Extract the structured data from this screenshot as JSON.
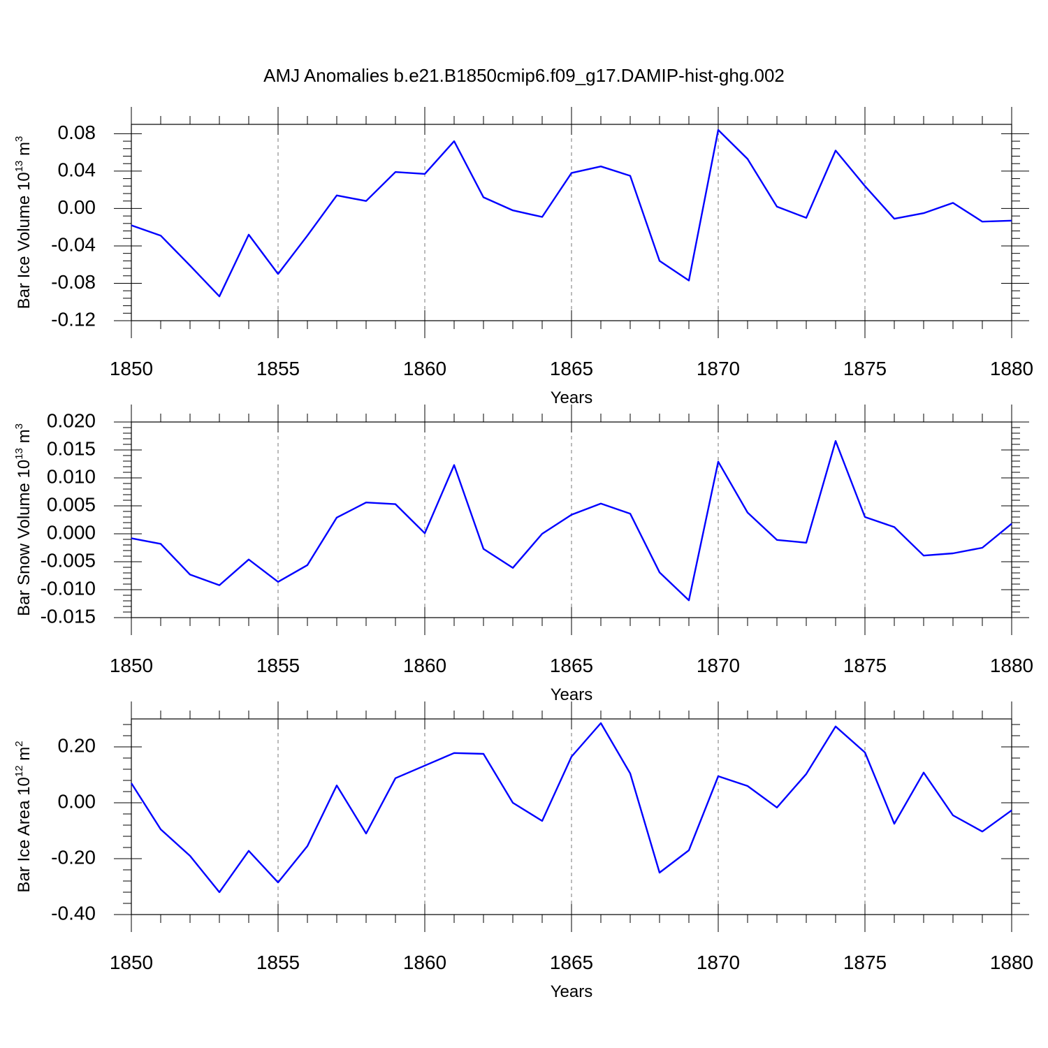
{
  "title": "AMJ Anomalies b.e21.B1850cmip6.f09_g17.DAMIP-hist-ghg.002",
  "chart_data": [
    {
      "type": "line",
      "ylabel": "Bar Ice Volume 10",
      "ylabel_exp": "13",
      "ylabel_unit": " m",
      "ylabel_unit_exp": "3",
      "xlabel": "Years",
      "xlim": [
        1850,
        1880
      ],
      "ylim": [
        -0.12,
        0.09
      ],
      "yticks": [
        -0.12,
        -0.08,
        -0.04,
        0.0,
        0.04,
        0.08
      ],
      "ytick_labels": [
        "-0.12",
        "-0.08",
        "-0.04",
        "0.00",
        "0.04",
        "0.08"
      ],
      "yminor_step": 0.008,
      "xticks": [
        1850,
        1855,
        1860,
        1865,
        1870,
        1875,
        1880
      ],
      "xtick_labels": [
        "1850",
        "1855",
        "1860",
        "1865",
        "1870",
        "1875",
        "1880"
      ],
      "series": [
        {
          "name": "Bar Ice Volume",
          "color": "#0000ff",
          "x": [
            1850,
            1851,
            1852,
            1853,
            1854,
            1855,
            1856,
            1857,
            1858,
            1859,
            1860,
            1861,
            1862,
            1863,
            1864,
            1865,
            1866,
            1867,
            1868,
            1869,
            1870,
            1871,
            1872,
            1873,
            1874,
            1875,
            1876,
            1877,
            1878,
            1879,
            1880
          ],
          "values": [
            -0.018,
            -0.029,
            -0.061,
            -0.094,
            -0.028,
            -0.07,
            -0.029,
            0.014,
            0.008,
            0.039,
            0.037,
            0.072,
            0.012,
            -0.002,
            -0.009,
            0.038,
            0.045,
            0.035,
            -0.056,
            -0.077,
            0.084,
            0.053,
            0.002,
            -0.01,
            0.062,
            0.024,
            -0.011,
            -0.005,
            0.006,
            -0.014,
            -0.013
          ]
        }
      ]
    },
    {
      "type": "line",
      "ylabel": "Bar Snow Volume 10",
      "ylabel_exp": "13",
      "ylabel_unit": " m",
      "ylabel_unit_exp": "3",
      "xlabel": "Years",
      "xlim": [
        1850,
        1880
      ],
      "ylim": [
        -0.015,
        0.02
      ],
      "yticks": [
        -0.015,
        -0.01,
        -0.005,
        0.0,
        0.005,
        0.01,
        0.015,
        0.02
      ],
      "ytick_labels": [
        "-0.015",
        "-0.010",
        "-0.005",
        "0.000",
        "0.005",
        "0.010",
        "0.015",
        "0.020"
      ],
      "yminor_step": 0.001,
      "xticks": [
        1850,
        1855,
        1860,
        1865,
        1870,
        1875,
        1880
      ],
      "xtick_labels": [
        "1850",
        "1855",
        "1860",
        "1865",
        "1870",
        "1875",
        "1880"
      ],
      "series": [
        {
          "name": "Bar Snow Volume",
          "color": "#0000ff",
          "x": [
            1850,
            1851,
            1852,
            1853,
            1854,
            1855,
            1856,
            1857,
            1858,
            1859,
            1860,
            1861,
            1862,
            1863,
            1864,
            1865,
            1866,
            1867,
            1868,
            1869,
            1870,
            1871,
            1872,
            1873,
            1874,
            1875,
            1876,
            1877,
            1878,
            1879,
            1880
          ],
          "values": [
            -0.0008,
            -0.0018,
            -0.0073,
            -0.0092,
            -0.0046,
            -0.0086,
            -0.0056,
            0.0029,
            0.0056,
            0.0053,
            0.0001,
            0.0123,
            -0.0027,
            -0.0061,
            0.0,
            0.0034,
            0.0054,
            0.0036,
            -0.0069,
            -0.0119,
            0.0129,
            0.0038,
            -0.0011,
            -0.0016,
            0.0166,
            0.003,
            0.0012,
            -0.0039,
            -0.0035,
            -0.0025,
            0.0018
          ]
        }
      ]
    },
    {
      "type": "line",
      "ylabel": "Bar Ice Area 10",
      "ylabel_exp": "12",
      "ylabel_unit": " m",
      "ylabel_unit_exp": "2",
      "xlabel": "Years",
      "xlim": [
        1850,
        1880
      ],
      "ylim": [
        -0.4,
        0.3
      ],
      "yticks": [
        -0.4,
        -0.2,
        0.0,
        0.2
      ],
      "ytick_labels": [
        "-0.40",
        "-0.20",
        "0.00",
        "0.20"
      ],
      "yminor_step": 0.04,
      "xticks": [
        1850,
        1855,
        1860,
        1865,
        1870,
        1875,
        1880
      ],
      "xtick_labels": [
        "1850",
        "1855",
        "1860",
        "1865",
        "1870",
        "1875",
        "1880"
      ],
      "series": [
        {
          "name": "Bar Ice Area",
          "color": "#0000ff",
          "x": [
            1850,
            1851,
            1852,
            1853,
            1854,
            1855,
            1856,
            1857,
            1858,
            1859,
            1860,
            1861,
            1862,
            1863,
            1864,
            1865,
            1866,
            1867,
            1868,
            1869,
            1870,
            1871,
            1872,
            1873,
            1874,
            1875,
            1876,
            1877,
            1878,
            1879,
            1880
          ],
          "values": [
            0.07,
            -0.095,
            -0.19,
            -0.32,
            -0.172,
            -0.285,
            -0.155,
            0.062,
            -0.11,
            0.088,
            0.133,
            0.178,
            0.175,
            0.0,
            -0.065,
            0.165,
            0.285,
            0.105,
            -0.25,
            -0.17,
            0.095,
            0.06,
            -0.017,
            0.103,
            0.273,
            0.18,
            -0.075,
            0.108,
            -0.045,
            -0.103,
            -0.027
          ]
        }
      ]
    }
  ]
}
